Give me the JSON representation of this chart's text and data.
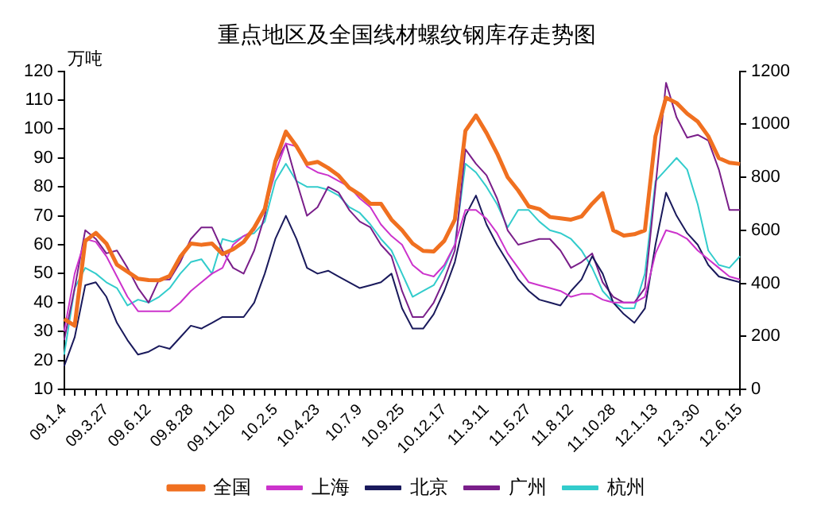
{
  "chart_data": {
    "type": "line",
    "title": "重点地区及全国线材螺纹钢库存走势图",
    "ylabel": "万吨",
    "categories": [
      "09.1.4",
      null,
      null,
      null,
      "09.3.27",
      null,
      null,
      null,
      "09.6.12",
      null,
      null,
      null,
      "09.8.28",
      null,
      null,
      null,
      "09.11.20",
      null,
      null,
      null,
      "10.2.5",
      null,
      null,
      null,
      "10.4.23",
      null,
      null,
      null,
      "10.7.9",
      null,
      null,
      null,
      "10.9.25",
      null,
      null,
      null,
      "10.12.17",
      null,
      null,
      null,
      "11.3.11",
      null,
      null,
      null,
      "11.5.27",
      null,
      null,
      null,
      "11.8.12",
      null,
      null,
      null,
      "11.10.28",
      null,
      null,
      null,
      "12.1.13",
      null,
      null,
      null,
      "12.3.30",
      null,
      null,
      null,
      "12.6.15"
    ],
    "series": [
      {
        "name": "上海",
        "color": "#cc33cc",
        "values": [
          30,
          50,
          62,
          61,
          56,
          49,
          42,
          37,
          37,
          37,
          37,
          40,
          44,
          47,
          50,
          52,
          60,
          63,
          65,
          72,
          85,
          95,
          94,
          87,
          85,
          84,
          82,
          80,
          76,
          73,
          67,
          63,
          60,
          53,
          50,
          49,
          53,
          60,
          72,
          72,
          69,
          64,
          57,
          52,
          47,
          46,
          45,
          44,
          42,
          43,
          43,
          41,
          40,
          40,
          40,
          42,
          57,
          65,
          64,
          62,
          58,
          55,
          52,
          49,
          48
        ]
      },
      {
        "name": "北京",
        "color": "#1a1a5c",
        "values": [
          18,
          28,
          46,
          47,
          42,
          33,
          27,
          22,
          23,
          25,
          24,
          28,
          32,
          31,
          33,
          35,
          35,
          35,
          40,
          50,
          62,
          70,
          62,
          52,
          50,
          51,
          49,
          47,
          45,
          46,
          47,
          50,
          38,
          31,
          31,
          36,
          44,
          54,
          70,
          77,
          67,
          60,
          54,
          48,
          44,
          41,
          40,
          39,
          44,
          48,
          56,
          50,
          40,
          36,
          33,
          38,
          60,
          78,
          70,
          64,
          60,
          53,
          49,
          48,
          47
        ]
      },
      {
        "name": "广州",
        "color": "#7a1f8a",
        "values": [
          27,
          45,
          65,
          62,
          57,
          58,
          52,
          45,
          40,
          48,
          48,
          54,
          62,
          66,
          66,
          58,
          52,
          50,
          58,
          70,
          88,
          95,
          82,
          70,
          73,
          80,
          78,
          72,
          68,
          66,
          60,
          56,
          44,
          35,
          35,
          40,
          48,
          58,
          93,
          88,
          84,
          76,
          65,
          60,
          61,
          62,
          62,
          58,
          52,
          54,
          57,
          47,
          42,
          40,
          40,
          45,
          80,
          116,
          104,
          97,
          98,
          96,
          86,
          72,
          72
        ]
      },
      {
        "name": "杭州",
        "color": "#33cccc",
        "values": [
          22,
          45,
          52,
          50,
          47,
          45,
          39,
          41,
          40,
          42,
          45,
          50,
          54,
          55,
          50,
          62,
          61,
          63,
          64,
          68,
          82,
          88,
          82,
          80,
          80,
          79,
          77,
          73,
          71,
          67,
          62,
          58,
          50,
          42,
          44,
          46,
          52,
          60,
          88,
          85,
          80,
          74,
          66,
          72,
          72,
          68,
          65,
          64,
          62,
          58,
          52,
          44,
          40,
          38,
          38,
          50,
          82,
          86,
          90,
          86,
          74,
          58,
          53,
          52,
          56
        ]
      },
      {
        "name": "全国",
        "color": "#f07020",
        "axis": "y2",
        "values": [
          265,
          240,
          560,
          590,
          550,
          470,
          444,
          417,
          412,
          411,
          428,
          500,
          550,
          545,
          550,
          510,
          528,
          556,
          610,
          680,
          860,
          972,
          917,
          850,
          858,
          835,
          806,
          760,
          735,
          700,
          700,
          640,
          600,
          550,
          522,
          520,
          560,
          640,
          975,
          1033,
          967,
          890,
          800,
          750,
          690,
          680,
          650,
          645,
          640,
          652,
          700,
          740,
          600,
          580,
          585,
          600,
          955,
          1100,
          1080,
          1040,
          1010,
          955,
          872,
          855,
          850
        ]
      }
    ],
    "ylim": [
      10,
      120
    ],
    "yticks": [
      10,
      20,
      30,
      40,
      50,
      60,
      70,
      80,
      90,
      100,
      110,
      120
    ],
    "y2lim": [
      0,
      1200
    ],
    "y2ticks": [
      0,
      200,
      400,
      600,
      800,
      1000,
      1200
    ],
    "grid": false,
    "legend": "bottom"
  }
}
